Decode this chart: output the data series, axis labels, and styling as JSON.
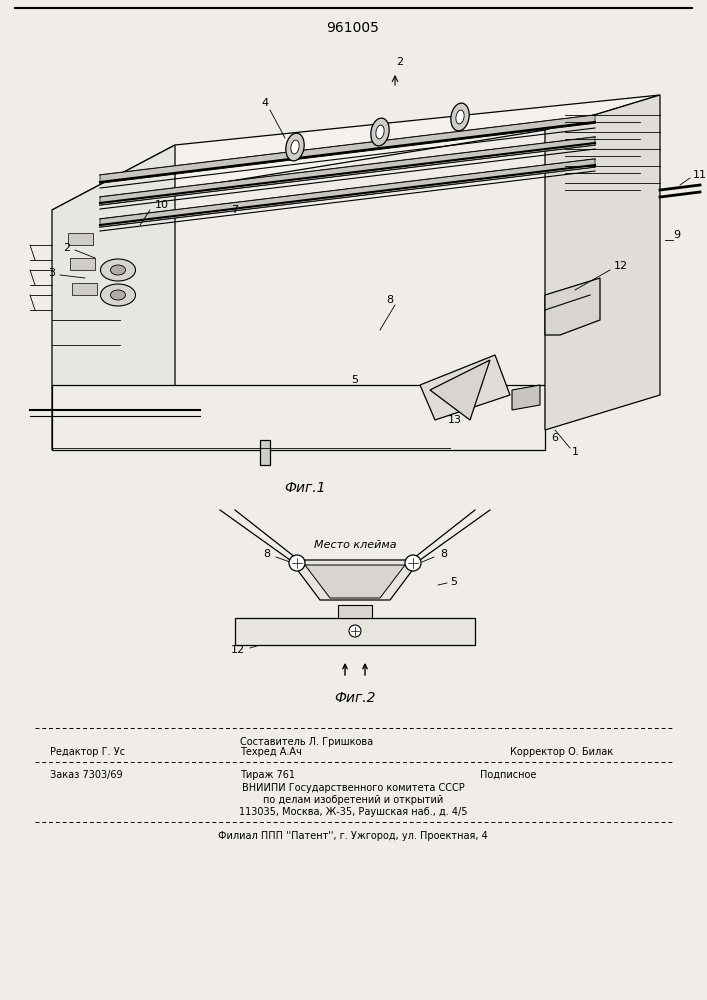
{
  "patent_number": "961005",
  "background_color": "#f0ede8",
  "fig1_caption": "Фиг.1",
  "fig2_caption": "Фиг.2",
  "footer_sestavitel": "Составитель Л. Гришкова",
  "footer_redaktor": "Редактор Г. Ус",
  "footer_tehred": "Техред А.Ач",
  "footer_korrektor": "Корректор О. Билак",
  "footer_zakaz": "Заказ 7303/69",
  "footer_tirazh": "Тираж 761",
  "footer_podpisnoe": "Подписное",
  "footer_vniip1": "ВНИИПИ Государственного комитета СССР",
  "footer_vniip2": "по делам изобретений и открытий",
  "footer_addr": "113035, Москва, Ж-35, Раушская наб., д. 4/5",
  "footer_filial": "Филиал ППП ''Патент'', г. Ужгород, ул. Проектная, 4"
}
